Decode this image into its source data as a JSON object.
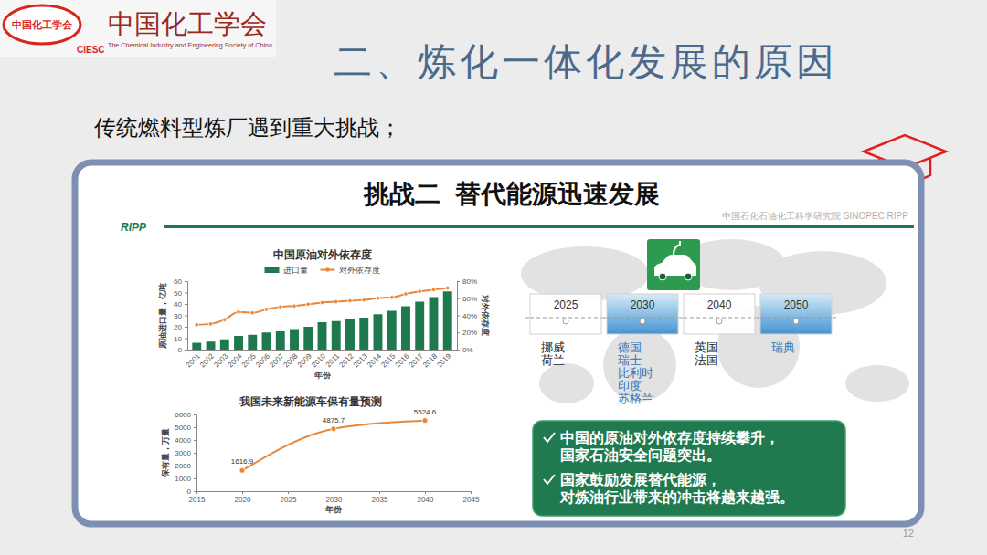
{
  "header": {
    "logo_text": "中国化工学会",
    "logo_abbr": "CIESC",
    "org_name": "中国化工学会",
    "org_name_en": "The Chemical Industry and Engineering Society of China",
    "title": "二、炼化一体化发展的原因",
    "subtitle": "传统燃料型炼厂遇到重大挑战；"
  },
  "panel": {
    "title": "挑战二  替代能源迅速发展",
    "tag": "RIPP",
    "watermark": "中国石化石油化工科学研究院 SINOPEC RIPP"
  },
  "chart_data": [
    {
      "type": "bar",
      "title": "中国原油对外依存度",
      "x_label": "年份",
      "y_label": "原油进口量，亿吨",
      "y2_label": "对外依存度",
      "categories": [
        "2001",
        "2002",
        "2003",
        "2004",
        "2005",
        "2006",
        "2007",
        "2008",
        "2009",
        "2010",
        "2011",
        "2012",
        "2013",
        "2014",
        "2015",
        "2016",
        "2017",
        "2018",
        "2019"
      ],
      "series": [
        {
          "name": "进口量",
          "type": "bar",
          "color": "#1e7a4e",
          "values": [
            6,
            7,
            9,
            12,
            13,
            15,
            16,
            18,
            20,
            24,
            25,
            27,
            28,
            31,
            34,
            38,
            42,
            46,
            51
          ]
        },
        {
          "name": "对外依存度",
          "type": "line",
          "axis": "y2",
          "color": "#e8873a",
          "marker": "circle",
          "values": [
            29,
            30,
            35,
            44,
            43,
            47,
            50,
            51,
            53,
            55,
            56,
            57,
            58,
            60,
            61,
            65,
            68,
            70,
            72
          ]
        }
      ],
      "ylim": [
        0,
        60
      ],
      "yticks": [
        0,
        10,
        20,
        30,
        40,
        50,
        60
      ],
      "y2lim": [
        0,
        80
      ],
      "y2ticks": [
        {
          "value": 0,
          "label": "0%"
        },
        {
          "value": 20,
          "label": "20%"
        },
        {
          "value": 40,
          "label": "40%"
        },
        {
          "value": 60,
          "label": "60%"
        },
        {
          "value": 80,
          "label": "80%"
        }
      ],
      "grid": false,
      "legend": "top"
    },
    {
      "type": "line",
      "title": "我国未来新能源车保有量预测",
      "x_label": "年份",
      "y_label": "保有量，万量",
      "x": [
        2020,
        2030,
        2040
      ],
      "values": [
        1616.9,
        4875.7,
        5524.6
      ],
      "color": "#e8873a",
      "marker": "circle",
      "data_labels": true,
      "xlim": [
        2015,
        2045
      ],
      "xticks": [
        2015,
        2020,
        2025,
        2030,
        2035,
        2040,
        2045
      ],
      "ylim": [
        0,
        6000
      ],
      "yticks": [
        0,
        1000,
        2000,
        3000,
        4000,
        5000,
        6000
      ],
      "grid": false
    }
  ],
  "timeline": {
    "milestones": [
      {
        "year": 2025,
        "countries": [
          "挪威",
          "荷兰"
        ]
      },
      {
        "year": 2030,
        "countries": [
          "德国",
          "瑞士",
          "比利时",
          "印度",
          "苏格兰"
        ]
      },
      {
        "year": 2040,
        "countries": [
          "英国",
          "法国"
        ]
      },
      {
        "year": 2050,
        "countries": [
          "瑞典"
        ]
      }
    ]
  },
  "summary": {
    "points": [
      "中国的原油对外依存度持续攀升，国家石油安全问题突出。",
      "国家鼓励发展替代能源，对炼油行业带来的冲击将越来越强。"
    ]
  },
  "page_number": "12"
}
